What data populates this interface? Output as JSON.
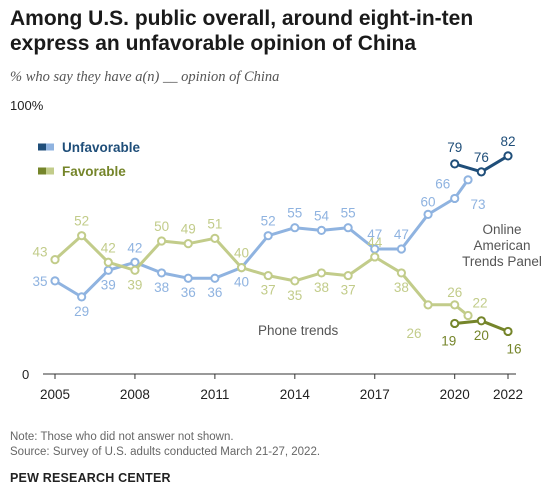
{
  "title": "Among U.S. public overall, around eight-in-ten express an unfavorable opinion of China",
  "subtitle": "% who say they have a(n) __ opinion of China",
  "note": "Note: Those who did not answer not shown.",
  "source": "Source: Survey of U.S. adults conducted March 21-27, 2022.",
  "footer": "PEW RESEARCH CENTER",
  "chart_data": {
    "type": "line",
    "y_top_label": "100%",
    "y_bottom_label": "0",
    "ylim": [
      0,
      100
    ],
    "xlim": [
      2005,
      2022
    ],
    "x_ticks": [
      "2005",
      "2008",
      "2011",
      "2014",
      "2017",
      "2020",
      "2022"
    ],
    "legend_position": "top-left",
    "annotations": {
      "phone": "Phone trends",
      "online": [
        "Online",
        "American",
        "Trends Panel"
      ]
    },
    "series": [
      {
        "name": "Unfavorable",
        "mode": "Phone",
        "color": "#8fb3e0",
        "x": [
          2005,
          2006,
          2007,
          2008,
          2009,
          2010,
          2011,
          2012,
          2013,
          2014,
          2015,
          2016,
          2017,
          2018,
          2019,
          2020,
          2020.5
        ],
        "values": [
          35,
          29,
          39,
          42,
          38,
          36,
          36,
          40,
          52,
          55,
          54,
          55,
          47,
          47,
          60,
          66,
          73
        ]
      },
      {
        "name": "Favorable",
        "mode": "Phone",
        "color": "#c2cc8a",
        "x": [
          2005,
          2006,
          2007,
          2008,
          2009,
          2010,
          2011,
          2012,
          2013,
          2014,
          2015,
          2016,
          2017,
          2018,
          2019,
          2020,
          2020.5
        ],
        "values": [
          43,
          52,
          42,
          39,
          50,
          49,
          51,
          40,
          37,
          35,
          38,
          37,
          44,
          38,
          26,
          26,
          22
        ]
      },
      {
        "name": "Unfavorable",
        "mode": "Online",
        "color": "#1f4e79",
        "x": [
          2020,
          2021,
          2022
        ],
        "values": [
          79,
          76,
          82
        ]
      },
      {
        "name": "Favorable",
        "mode": "Online",
        "color": "#75852a",
        "x": [
          2020,
          2021,
          2022
        ],
        "values": [
          19,
          20,
          16
        ]
      }
    ]
  }
}
